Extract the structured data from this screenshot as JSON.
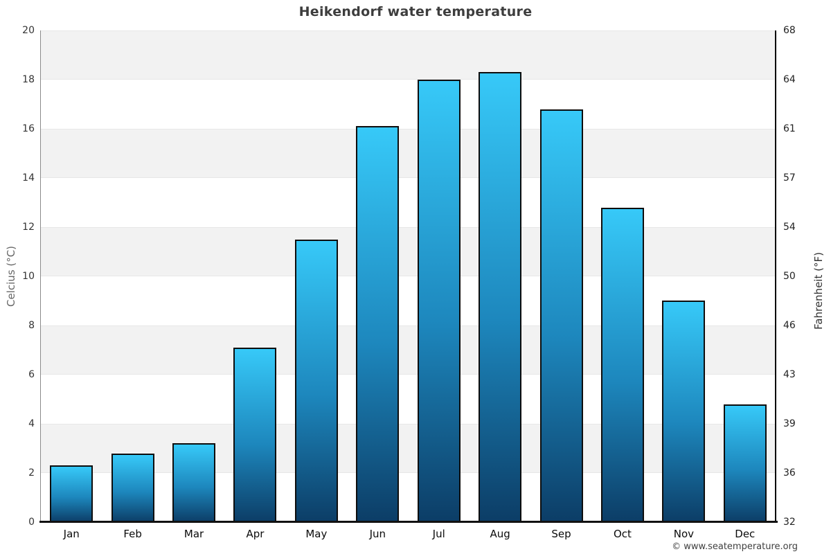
{
  "title": "Heikendorf water temperature",
  "footer_credit": "© www.seatemperature.org",
  "chart_data": {
    "type": "bar",
    "title": "Heikendorf water temperature",
    "categories": [
      "Jan",
      "Feb",
      "Mar",
      "Apr",
      "May",
      "Jun",
      "Jul",
      "Aug",
      "Sep",
      "Oct",
      "Nov",
      "Dec"
    ],
    "values": [
      2.3,
      2.8,
      3.2,
      7.1,
      11.5,
      16.1,
      18.0,
      18.3,
      16.8,
      12.8,
      9.0,
      4.8
    ],
    "series_name": "Water temperature (°C)",
    "xlabel": "",
    "ylabel_left": "Celcius (°C)",
    "ylabel_right": "Fahrenheit (°F)",
    "ylim_left": [
      0,
      20
    ],
    "ylim_right": [
      32,
      68
    ],
    "y_ticks_left": [
      "20",
      "18",
      "16",
      "14",
      "12",
      "10",
      "8",
      "6",
      "4",
      "2",
      "0"
    ],
    "y_ticks_right": [
      "68",
      "64",
      "61",
      "57",
      "54",
      "50",
      "46",
      "43",
      "39",
      "36",
      "32"
    ],
    "grid": "alternating horizontal bands every 2°C",
    "legend": "none",
    "colors": {
      "bar_gradient_top": "#37c9f8",
      "bar_gradient_mid": "#1d87bd",
      "bar_gradient_bottom": "#0c3d66",
      "bar_border": "#0d0d0d",
      "band_shaded": "#f2f2f2",
      "band_plain": "#ffffff",
      "title_text": "#3d3d3d",
      "axis_text": "#333333"
    }
  }
}
